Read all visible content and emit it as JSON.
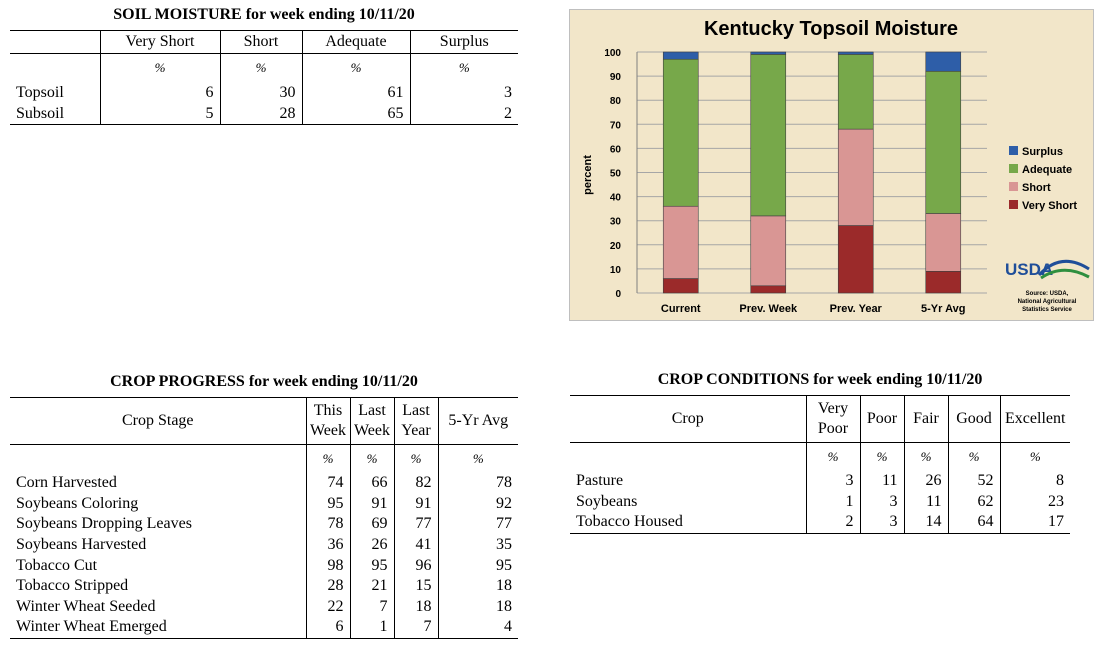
{
  "soil_moisture": {
    "title": "SOIL MOISTURE for week ending 10/11/20",
    "columns": [
      "",
      "Very Short",
      "Short",
      "Adequate",
      "Surplus"
    ],
    "units": [
      "",
      "%",
      "%",
      "%",
      "%"
    ],
    "rows": [
      [
        "Topsoil",
        "6",
        "30",
        "61",
        "3"
      ],
      [
        "Subsoil",
        "5",
        "28",
        "65",
        "2"
      ]
    ]
  },
  "crop_progress": {
    "title": "CROP PROGRESS for week ending 10/11/20",
    "columns": [
      "Crop Stage",
      "This Week",
      "Last Week",
      "Last Year",
      "5-Yr Avg"
    ],
    "units": [
      "",
      "%",
      "%",
      "%",
      "%"
    ],
    "rows": [
      [
        "Corn Harvested",
        "74",
        "66",
        "82",
        "78"
      ],
      [
        "Soybeans Coloring",
        "95",
        "91",
        "91",
        "92"
      ],
      [
        "Soybeans Dropping Leaves",
        "78",
        "69",
        "77",
        "77"
      ],
      [
        "Soybeans Harvested",
        "36",
        "26",
        "41",
        "35"
      ],
      [
        "Tobacco Cut",
        "98",
        "95",
        "96",
        "95"
      ],
      [
        "Tobacco Stripped",
        "28",
        "21",
        "15",
        "18"
      ],
      [
        "Winter Wheat Seeded",
        "22",
        "7",
        "18",
        "18"
      ],
      [
        "Winter Wheat Emerged",
        "6",
        "1",
        "7",
        "4"
      ]
    ]
  },
  "crop_conditions": {
    "title": "CROP CONDITIONS for week ending 10/11/20",
    "columns": [
      "Crop",
      "Very Poor",
      "Poor",
      "Fair",
      "Good",
      "Excellent"
    ],
    "units": [
      "",
      "%",
      "%",
      "%",
      "%",
      "%"
    ],
    "rows": [
      [
        "Pasture",
        "3",
        "11",
        "26",
        "52",
        "8"
      ],
      [
        "Soybeans",
        "1",
        "3",
        "11",
        "62",
        "23"
      ],
      [
        "Tobacco Housed",
        "2",
        "3",
        "14",
        "64",
        "17"
      ]
    ]
  },
  "chart_data": {
    "type": "bar",
    "stacked": true,
    "title": "Kentucky Topsoil Moisture",
    "xlabel": "",
    "ylabel": "percent",
    "ylim": [
      0,
      100
    ],
    "yticks": [
      0,
      10,
      20,
      30,
      40,
      50,
      60,
      70,
      80,
      90,
      100
    ],
    "grid": true,
    "legend": "right",
    "categories": [
      "Current",
      "Prev. Week",
      "Prev. Year",
      "5-Yr Avg"
    ],
    "series": [
      {
        "name": "Very Short",
        "color": "#9b2a2a",
        "values": [
          6,
          3,
          28,
          9
        ]
      },
      {
        "name": "Short",
        "color": "#d99694",
        "values": [
          30,
          29,
          40,
          24
        ]
      },
      {
        "name": "Adequate",
        "color": "#77a84a",
        "values": [
          61,
          67,
          31,
          59
        ]
      },
      {
        "name": "Surplus",
        "color": "#2e5ea8",
        "values": [
          3,
          1,
          1,
          8
        ]
      }
    ],
    "legend_order": [
      "Surplus",
      "Adequate",
      "Short",
      "Very Short"
    ],
    "background": "#f2e6c9",
    "logo": "USDA",
    "source": [
      "Source: USDA,",
      "National Agricultural",
      "Statistics Service"
    ]
  }
}
